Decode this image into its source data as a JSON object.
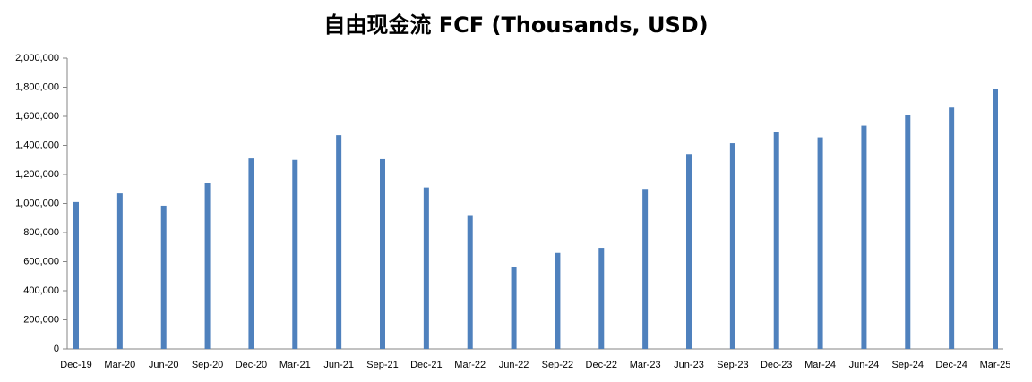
{
  "chart_data": {
    "type": "bar",
    "title": "自由现金流 FCF (Thousands, USD)",
    "categories": [
      "Dec-19",
      "Mar-20",
      "Jun-20",
      "Sep-20",
      "Dec-20",
      "Mar-21",
      "Jun-21",
      "Sep-21",
      "Dec-21",
      "Mar-22",
      "Jun-22",
      "Sep-22",
      "Dec-22",
      "Mar-23",
      "Jun-23",
      "Sep-23",
      "Dec-23",
      "Mar-24",
      "Jun-24",
      "Sep-24",
      "Dec-24",
      "Mar-25"
    ],
    "values": [
      1010000,
      1070000,
      985000,
      1140000,
      1310000,
      1300000,
      1470000,
      1305000,
      1110000,
      920000,
      566000,
      660000,
      695000,
      1100000,
      1340000,
      1415000,
      1490000,
      1455000,
      1535000,
      1610000,
      1660000,
      1790000
    ],
    "color": "#4f81bd",
    "ylim": [
      0,
      2000000
    ],
    "yticks": [
      0,
      {
        "value": 200000,
        "label": "200,000"
      },
      {
        "value": 400000,
        "label": "400,000"
      },
      {
        "value": 600000,
        "label": "600,000"
      },
      {
        "value": 800000,
        "label": "800,000"
      },
      {
        "value": 1000000,
        "label": "1,000,000"
      },
      {
        "value": 1200000,
        "label": "1,200,000"
      },
      {
        "value": 1400000,
        "label": "1,400,000"
      },
      {
        "value": 1600000,
        "label": "1,600,000"
      },
      {
        "value": 1800000,
        "label": "1,800,000"
      },
      {
        "value": 2000000,
        "label": "2,000,000"
      }
    ],
    "grid": false
  }
}
